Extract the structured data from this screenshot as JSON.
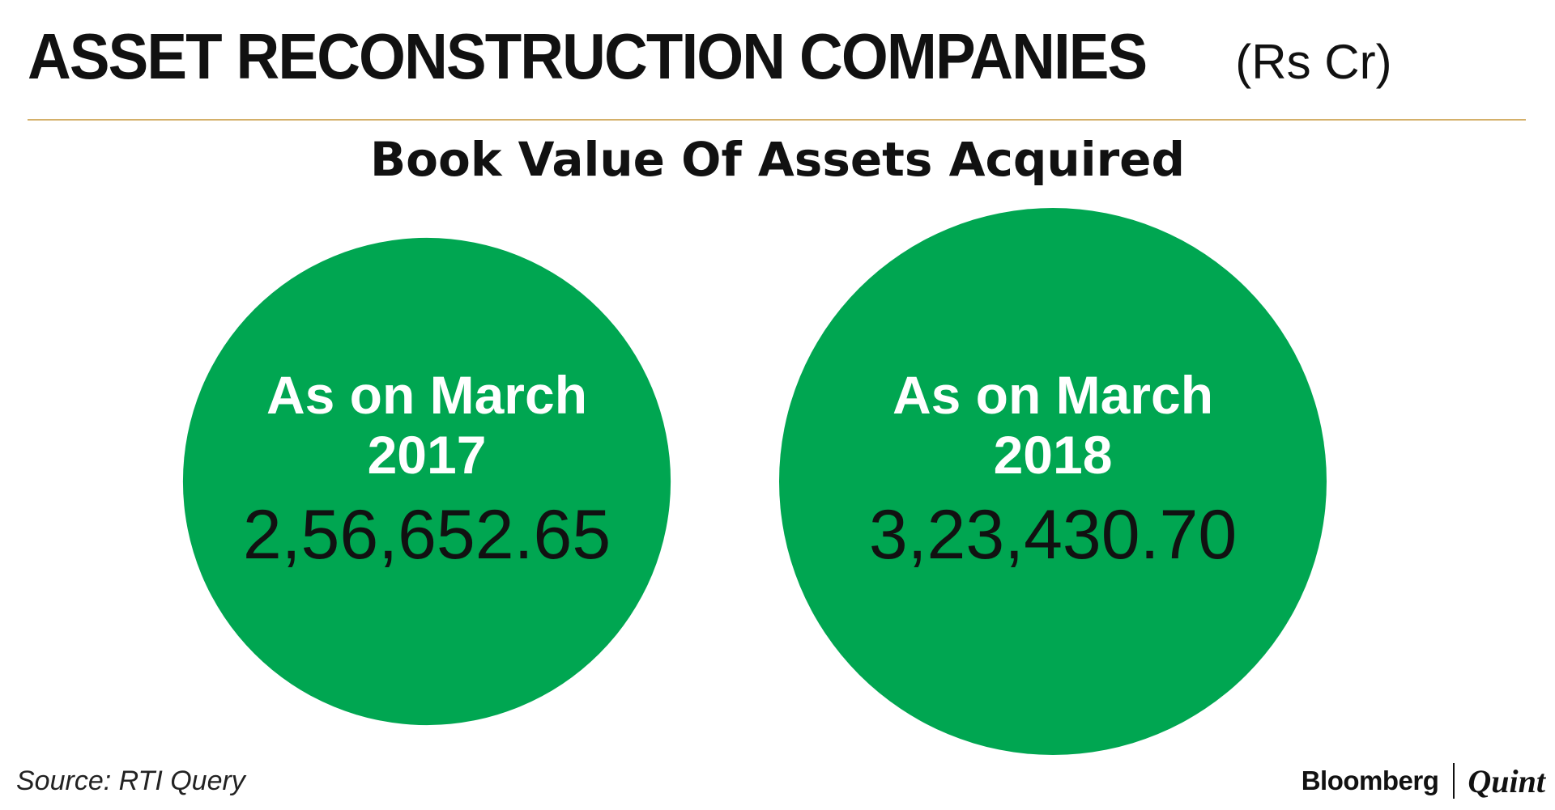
{
  "header": {
    "title": "ASSET RECONSTRUCTION COMPANIES",
    "unit": "(Rs Cr)"
  },
  "chart_data": {
    "type": "bubble",
    "title": "ASSET RECONSTRUCTION COMPANIES",
    "unit": "Rs Cr",
    "subtitle": "Book Value Of Assets Acquired",
    "series": [
      {
        "label_line1": "As on March",
        "label_line2": "2017",
        "value": 256652.65,
        "value_label": "2,56,652.65"
      },
      {
        "label_line1": "As on March",
        "label_line2": "2018",
        "value": 323430.7,
        "value_label": "3,23,430.70"
      }
    ],
    "colors": {
      "bubble": "#00a651"
    }
  },
  "footer": {
    "source": "Source: RTI Query",
    "brand_left": "Bloomberg",
    "brand_right": "Quint"
  }
}
